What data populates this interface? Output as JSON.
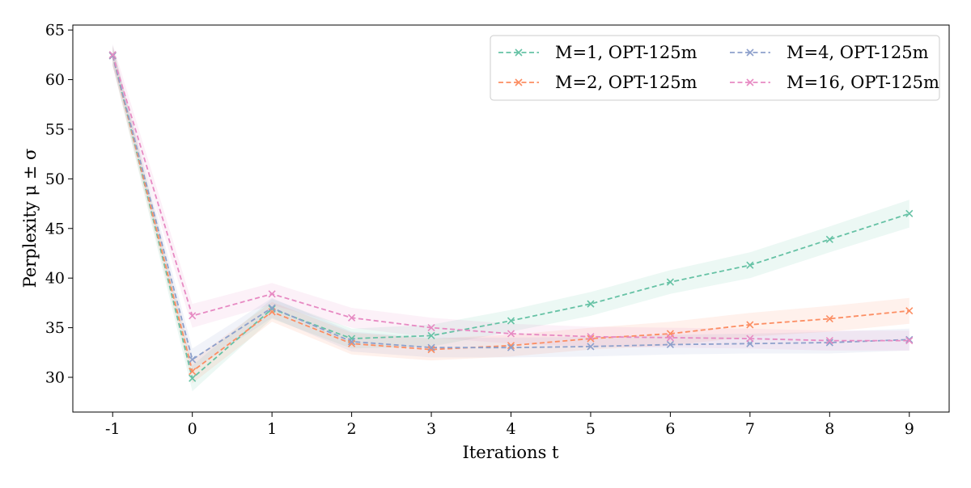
{
  "chart_data": {
    "type": "line",
    "title": "",
    "xlabel": "Iterations t",
    "ylabel": "Perplexity μ ± σ",
    "x": [
      -1,
      0,
      1,
      2,
      3,
      4,
      5,
      6,
      7,
      8,
      9
    ],
    "x_tick_labels": [
      "-1",
      "0",
      "1",
      "2",
      "3",
      "4",
      "5",
      "6",
      "7",
      "8",
      "9"
    ],
    "y_ticks": [
      30,
      35,
      40,
      45,
      50,
      55,
      60,
      65
    ],
    "y_tick_labels": [
      "30",
      "35",
      "40",
      "45",
      "50",
      "55",
      "60",
      "65"
    ],
    "xlim": [
      -1.5,
      9.5
    ],
    "ylim": [
      26.5,
      65.5
    ],
    "grid": false,
    "legend_position": "top-right",
    "legend_columns": 2,
    "series": [
      {
        "name": "M=1, OPT-125m",
        "color": "#66c2a5",
        "marker": "x",
        "linestyle": "dashed",
        "values": [
          62.5,
          29.9,
          36.9,
          33.9,
          34.2,
          35.7,
          37.4,
          39.6,
          41.3,
          43.9,
          46.5
        ],
        "std": [
          1.0,
          1.3,
          1.0,
          1.0,
          1.1,
          1.1,
          1.2,
          1.2,
          1.3,
          1.3,
          1.4
        ]
      },
      {
        "name": "M=2, OPT-125m",
        "color": "#fc8d62",
        "marker": "x",
        "linestyle": "dashed",
        "values": [
          62.4,
          30.6,
          36.6,
          33.4,
          32.8,
          33.2,
          33.9,
          34.4,
          35.3,
          35.9,
          36.7
        ],
        "std": [
          1.0,
          1.2,
          1.0,
          1.1,
          1.1,
          1.1,
          1.1,
          1.2,
          1.2,
          1.3,
          1.3
        ]
      },
      {
        "name": "M=4, OPT-125m",
        "color": "#8da0cb",
        "marker": "x",
        "linestyle": "dashed",
        "values": [
          62.4,
          31.8,
          37.0,
          33.6,
          33.0,
          33.0,
          33.1,
          33.3,
          33.4,
          33.5,
          33.8
        ],
        "std": [
          1.0,
          1.1,
          1.0,
          1.0,
          1.0,
          1.0,
          1.0,
          1.0,
          1.0,
          1.1,
          1.1
        ]
      },
      {
        "name": "M=16, OPT-125m",
        "color": "#e78ac3",
        "marker": "x",
        "linestyle": "dashed",
        "values": [
          62.5,
          36.2,
          38.4,
          36.0,
          35.0,
          34.4,
          34.1,
          34.0,
          33.9,
          33.7,
          33.7
        ],
        "std": [
          1.1,
          1.2,
          1.1,
          1.0,
          1.0,
          1.0,
          1.0,
          1.0,
          1.0,
          1.0,
          1.0
        ]
      }
    ]
  }
}
